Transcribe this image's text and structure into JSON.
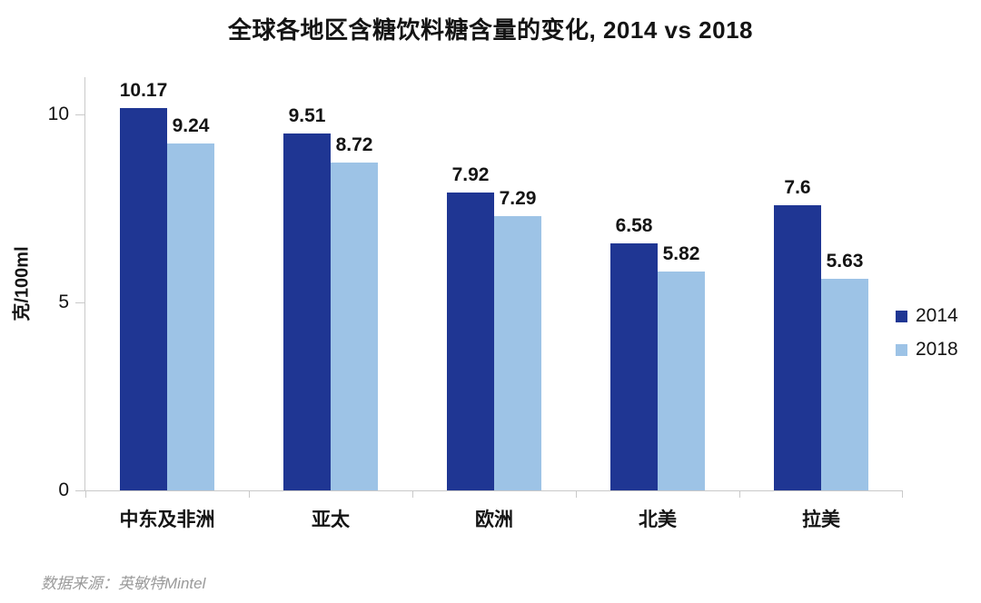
{
  "source_note": "数据来源：英敏特Mintel",
  "chart_data": {
    "type": "bar",
    "title": "全球各地区含糖饮料糖含量的变化, 2014 vs 2018",
    "categories": [
      "中东及非洲",
      "亚太",
      "欧洲",
      "北美",
      "拉美"
    ],
    "series": [
      {
        "name": "2014",
        "color": "#1F3693",
        "values": [
          10.17,
          9.51,
          7.92,
          6.58,
          7.6
        ],
        "labels": [
          "10.17",
          "9.51",
          "7.92",
          "6.58",
          "7.6"
        ]
      },
      {
        "name": "2018",
        "color": "#9DC3E6",
        "values": [
          9.24,
          8.72,
          7.29,
          5.82,
          5.63
        ],
        "labels": [
          "9.24",
          "8.72",
          "7.29",
          "5.82",
          "5.63"
        ]
      }
    ],
    "xlabel": "",
    "ylabel": "克/100ml",
    "yticks": [
      0,
      5,
      10
    ],
    "ylim": [
      0,
      11
    ],
    "grid": false,
    "legend_position": "right",
    "axis_color": "#C9C9C9",
    "text_color": "#141414",
    "source_color": "#9A9A9A",
    "background_color": "#FFFFFF"
  }
}
